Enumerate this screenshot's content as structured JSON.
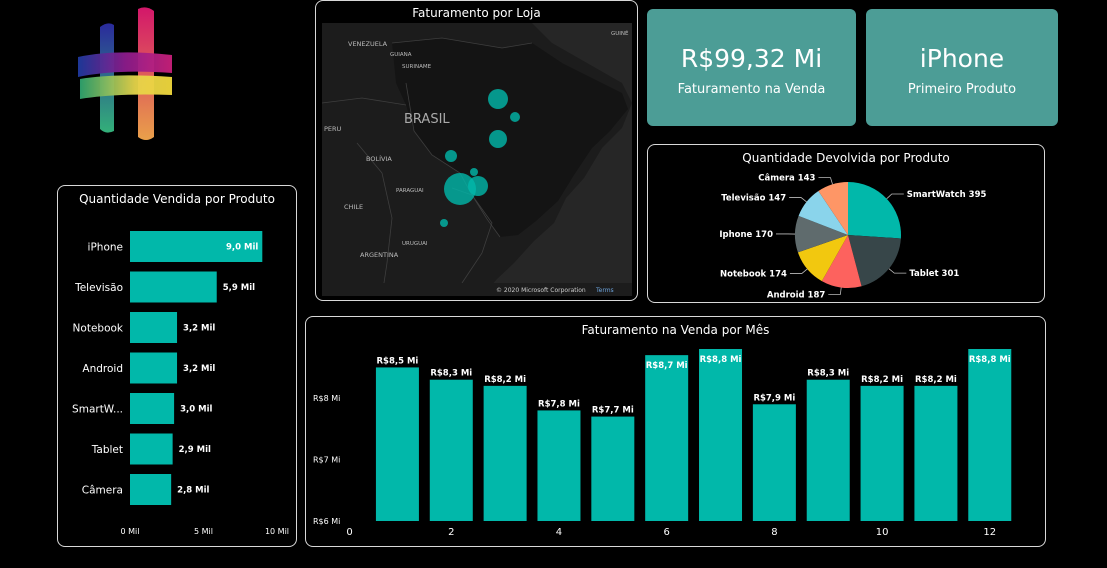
{
  "map": {
    "title": "Faturamento por Loja",
    "labels": [
      "VENEZUELA",
      "GUIANA",
      "SURINAME",
      "GUINÉ",
      "BRASIL",
      "PERU",
      "BOLÍVIA",
      "PARAGUAI",
      "CHILE",
      "URUGUAI",
      "ARGENTINA"
    ],
    "copyright": "© 2020 Microsoft Corporation",
    "terms": "Terms"
  },
  "kpis": [
    {
      "value": "R$99,32 Mi",
      "label": "Faturamento na Venda"
    },
    {
      "value": "iPhone",
      "label": "Primeiro Produto"
    }
  ],
  "chart_data": [
    {
      "type": "bar",
      "orientation": "horizontal",
      "title": "Quantidade Vendida por Produto",
      "categories": [
        "iPhone",
        "Televisão",
        "Notebook",
        "Android",
        "SmartW...",
        "Tablet",
        "Câmera"
      ],
      "values": [
        9.0,
        5.9,
        3.2,
        3.2,
        3.0,
        2.9,
        2.8
      ],
      "data_labels": [
        "9,0 Mil",
        "5,9 Mil",
        "3,2 Mil",
        "3,2 Mil",
        "3,0 Mil",
        "2,9 Mil",
        "2,8 Mil"
      ],
      "xlim": [
        0,
        10
      ],
      "xticks": [
        "0 Mil",
        "5 Mil",
        "10 Mil"
      ],
      "color": "#01b8aa"
    },
    {
      "type": "pie",
      "title": "Quantidade Devolvida por Produto",
      "slices": [
        {
          "label": "SmartWatch 395",
          "value": 395,
          "color": "#01b8aa"
        },
        {
          "label": "Tablet 301",
          "value": 301,
          "color": "#374649"
        },
        {
          "label": "Android 187",
          "value": 187,
          "color": "#fd625e"
        },
        {
          "label": "Notebook 174",
          "value": 174,
          "color": "#f2c80f"
        },
        {
          "label": "Iphone 170",
          "value": 170,
          "color": "#5f6b6d"
        },
        {
          "label": "Televisão 147",
          "value": 147,
          "color": "#8ad4eb"
        },
        {
          "label": "Câmera 143",
          "value": 143,
          "color": "#fe9666"
        }
      ]
    },
    {
      "type": "bar",
      "title": "Faturamento na Venda por Mês",
      "x": [
        1,
        2,
        3,
        4,
        5,
        6,
        7,
        8,
        9,
        10,
        11,
        12
      ],
      "values": [
        8.5,
        8.3,
        8.2,
        7.8,
        7.7,
        8.7,
        8.8,
        7.9,
        8.3,
        8.2,
        8.2,
        8.8
      ],
      "data_labels": [
        "R$8,5 Mi",
        "R$8,3 Mi",
        "R$8,2 Mi",
        "R$7,8 Mi",
        "R$7,7 Mi",
        "R$8,7 Mi",
        "R$8,8 Mi",
        "R$7,9 Mi",
        "R$8,3 Mi",
        "R$8,2 Mi",
        "R$8,2 Mi",
        "R$8,8 Mi"
      ],
      "ylim": [
        6,
        8.8
      ],
      "yticks": [
        {
          "v": 6,
          "label": "R$6 Mi"
        },
        {
          "v": 7,
          "label": "R$7 Mi"
        },
        {
          "v": 8,
          "label": "R$8 Mi"
        }
      ],
      "xticks": [
        "0",
        "2",
        "4",
        "6",
        "8",
        "10",
        "12"
      ],
      "color": "#01b8aa"
    }
  ]
}
